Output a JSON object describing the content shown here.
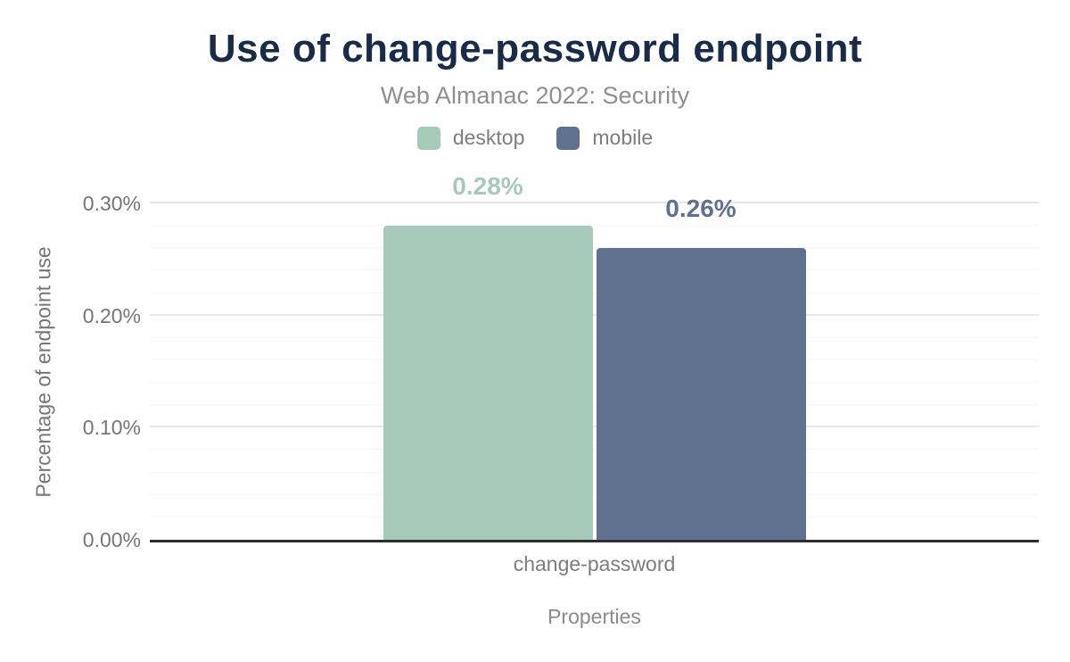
{
  "chart_data": {
    "type": "bar",
    "title": "Use of change-password endpoint",
    "subtitle": "Web Almanac 2022: Security",
    "title_color": "#1a2b49",
    "categories": [
      "change-password"
    ],
    "series": [
      {
        "name": "desktop",
        "values": [
          0.28
        ],
        "labels": [
          "0.28%"
        ],
        "color": "#a5cab9"
      },
      {
        "name": "mobile",
        "values": [
          0.26
        ],
        "labels": [
          "0.26%"
        ],
        "color": "#5f718e"
      }
    ],
    "xlabel": "Properties",
    "ylabel": "Percentage of endpoint use",
    "ylim": [
      0,
      0.3
    ],
    "yticks": [
      0,
      0.1,
      0.2,
      0.3
    ],
    "ytick_labels": [
      "0.00%",
      "0.10%",
      "0.20%",
      "0.30%"
    ],
    "minor_grid_step": 0.02,
    "grid": true,
    "legend_position": "top",
    "axis_color": "#2e2e2e"
  }
}
